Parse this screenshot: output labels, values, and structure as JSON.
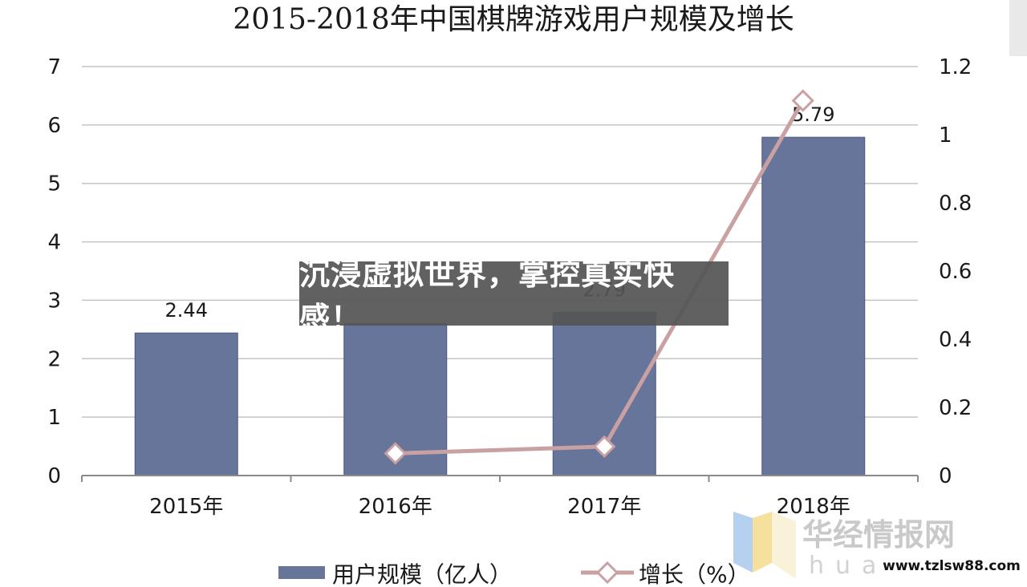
{
  "chart_data": {
    "type": "bar",
    "title": "2015-2018年中国棋牌游戏用户规模及增长",
    "categories": [
      "2015年",
      "2016年",
      "2017年",
      "2018年"
    ],
    "series": [
      {
        "name": "用户规模（亿人）",
        "type": "bar",
        "axis": "left",
        "color": "#67759b",
        "values": [
          2.44,
          2.6,
          2.79,
          5.79
        ],
        "data_labels": [
          "2.44",
          "",
          "2.79",
          "5.79"
        ]
      },
      {
        "name": "增长（%）",
        "type": "line",
        "axis": "right",
        "color": "#c9a1a3",
        "values": [
          null,
          0.065,
          0.085,
          1.1
        ]
      }
    ],
    "y_left": {
      "min": 0,
      "max": 7,
      "ticks": [
        "0",
        "1",
        "2",
        "3",
        "4",
        "5",
        "6",
        "7"
      ]
    },
    "y_right": {
      "min": 0,
      "max": 1.2,
      "ticks": [
        "0",
        "0.2",
        "0.4",
        "0.6",
        "0.8",
        "1",
        "1.2"
      ]
    },
    "grid": true,
    "legend_position": "bottom"
  },
  "overlay": {
    "banner_text": "沉浸虚拟世界，掌控真实快感！"
  },
  "watermark": {
    "name": "华经情报网",
    "pinyin": "huaon",
    "site": "www.tzlsw88.com"
  }
}
